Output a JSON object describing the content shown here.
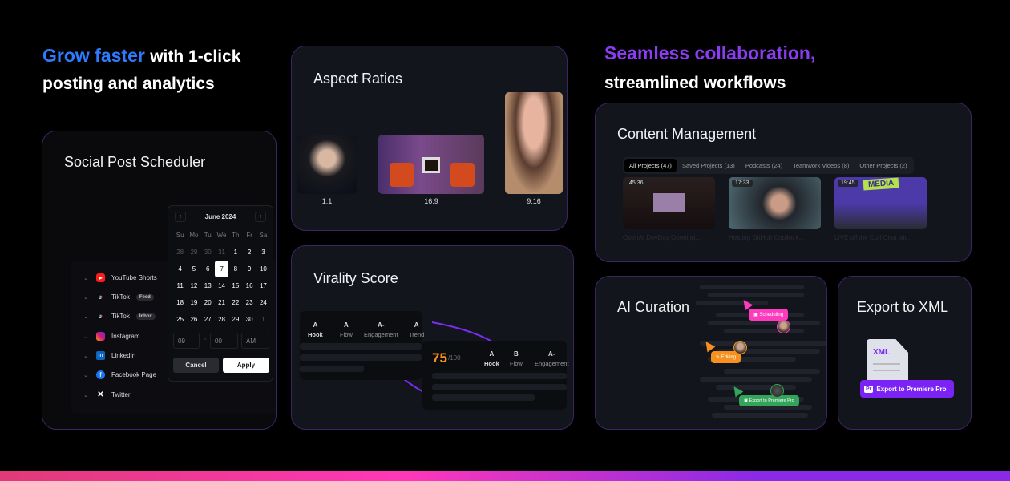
{
  "left_headline": {
    "accent": "Grow faster",
    "rest": "with 1-click",
    "line2": "posting and analytics"
  },
  "right_headline": {
    "accent": "Seamless collaboration,",
    "line2": "streamlined workflows"
  },
  "colors": {
    "blue": "#2f7bff",
    "purple": "#8b3cf2",
    "orange": "#f7901e",
    "pink": "#ff3bbd",
    "green": "#33a55a"
  },
  "scheduler": {
    "title": "Social Post Scheduler",
    "platforms": [
      {
        "label": "YouTube Shorts",
        "icon": "youtube-shorts-icon"
      },
      {
        "label": "TikTok",
        "badge": "Feed",
        "icon": "tiktok-icon"
      },
      {
        "label": "TikTok",
        "badge": "Inbox",
        "icon": "tiktok-icon"
      },
      {
        "label": "Instagram",
        "icon": "instagram-icon"
      },
      {
        "label": "LinkedIn",
        "icon": "linkedin-icon"
      },
      {
        "label": "Facebook Page",
        "icon": "facebook-icon"
      },
      {
        "label": "Twitter",
        "icon": "x-icon"
      }
    ],
    "calendar": {
      "month": "June 2024",
      "weekdays": [
        "Su",
        "Mo",
        "Tu",
        "We",
        "Th",
        "Fr",
        "Sa"
      ],
      "days": [
        "28",
        "29",
        "30",
        "31",
        "1",
        "2",
        "3",
        "4",
        "5",
        "6",
        "7",
        "8",
        "9",
        "10",
        "11",
        "12",
        "13",
        "14",
        "15",
        "16",
        "17",
        "18",
        "19",
        "20",
        "21",
        "22",
        "23",
        "24",
        "25",
        "26",
        "27",
        "28",
        "29",
        "30",
        "1"
      ],
      "selected": "7",
      "hour": "09",
      "minute": "00",
      "ampm": "AM",
      "cancel": "Cancel",
      "apply": "Apply"
    }
  },
  "aspect": {
    "title": "Aspect Ratios",
    "ratios": [
      "1:1",
      "16:9",
      "9:16"
    ]
  },
  "virality": {
    "title": "Virality Score",
    "card1": [
      {
        "grade": "A",
        "label": "Hook"
      },
      {
        "grade": "A",
        "label": "Flow"
      },
      {
        "grade": "A-",
        "label": "Engagement"
      },
      {
        "grade": "A",
        "label": "Trend"
      }
    ],
    "score": "75",
    "score_max": "/100",
    "card2": [
      {
        "grade": "A",
        "label": "Hook"
      },
      {
        "grade": "B",
        "label": "Flow"
      },
      {
        "grade": "A-",
        "label": "Engagement"
      }
    ]
  },
  "content": {
    "title": "Content Management",
    "tabs": [
      "All Projects (47)",
      "Saved Projects (13)",
      "Podcasts (24)",
      "Teamwork Videos (8)",
      "Other Projects (2)"
    ],
    "videos": [
      {
        "duration": "45:36",
        "title": "OpenAI DevDay Opening..."
      },
      {
        "duration": "17:33",
        "title": "Helping GitHub Copilot k..."
      },
      {
        "duration": "19:45",
        "title": "LIVE off the Cuff Chat wit...",
        "overlay": "MEDIA"
      }
    ]
  },
  "curation": {
    "title": "AI Curation",
    "tags": [
      "Scheduling",
      "Editing",
      "Export to Premiere Pro"
    ]
  },
  "export": {
    "title": "Export to XML",
    "file_label": "XML",
    "button": "Export to Premiere Pro",
    "pr": "Pr"
  }
}
